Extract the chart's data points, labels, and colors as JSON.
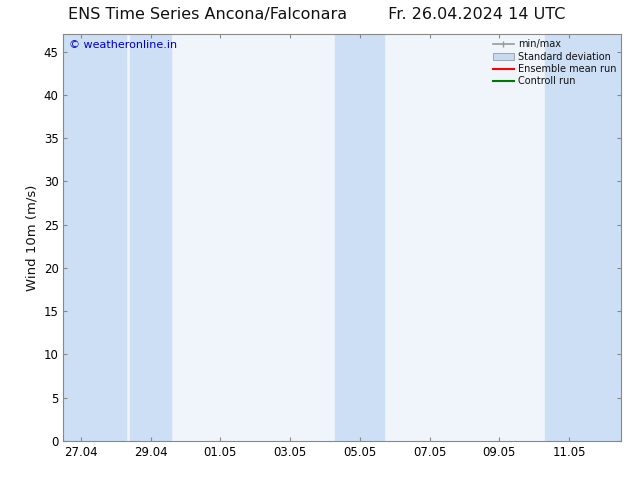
{
  "title": "ENS Time Series Ancona/Falconara",
  "title_date": "Fr. 26.04.2024 14 UTC",
  "ylabel": "Wind 10m (m/s)",
  "watermark": "© weatheronline.in",
  "watermark_color": "#0000cc",
  "ylim": [
    0,
    47
  ],
  "yticks": [
    0,
    5,
    10,
    15,
    20,
    25,
    30,
    35,
    40,
    45
  ],
  "xlim": [
    0,
    16
  ],
  "xtick_labels": [
    "27.04",
    "29.04",
    "01.05",
    "03.05",
    "05.05",
    "07.05",
    "09.05",
    "11.05"
  ],
  "xtick_positions": [
    0.5,
    2.5,
    4.5,
    6.5,
    8.5,
    10.5,
    12.5,
    14.5
  ],
  "bg_color": "#ffffff",
  "plot_bg_color": "#f0f5fc",
  "shaded_band_color": "#ccdff5",
  "shaded_band_alpha": 1.0,
  "shaded_bands": [
    [
      0,
      1.8
    ],
    [
      1.9,
      3.1
    ],
    [
      7.8,
      9.2
    ],
    [
      13.8,
      16.0
    ]
  ],
  "spine_color": "#888888",
  "legend_min_max_color": "#999999",
  "legend_std_color": "#c8daf0",
  "legend_ensemble_color": "#ff0000",
  "legend_control_color": "#007700",
  "font_color": "#111111",
  "title_fontsize": 11.5,
  "tick_fontsize": 8.5,
  "label_fontsize": 9.5
}
